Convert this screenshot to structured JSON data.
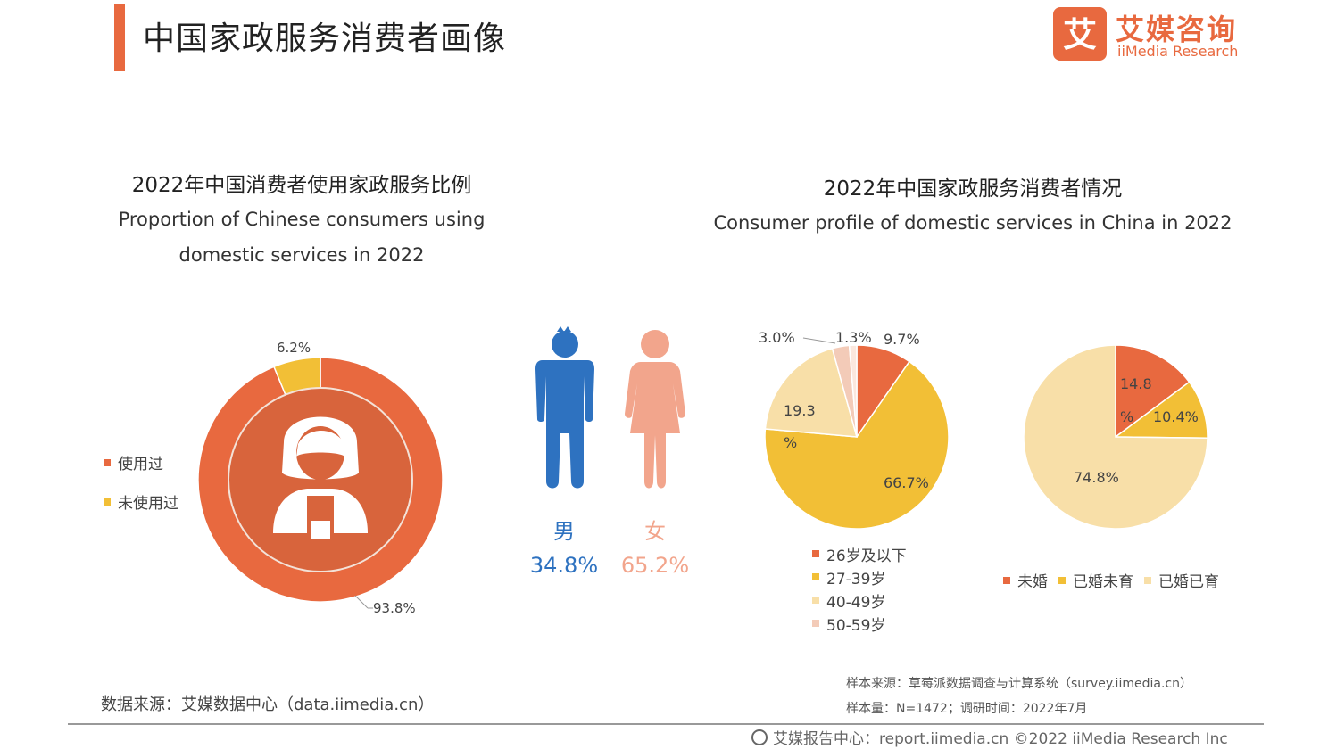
{
  "header": {
    "title": "中国家政服务消费者画像",
    "logo_cn": "艾媒咨询",
    "logo_en": "iiMedia Research",
    "logo_mark": "艾"
  },
  "colors": {
    "orange": "#e8693f",
    "yellow": "#f2bf36",
    "light_yellow": "#f8dfa8",
    "pink": "#f3cbb8",
    "blue": "#2e72c0",
    "salmon": "#f2a58c"
  },
  "left_section": {
    "title": "2022年中国消费者使用家政服务比例",
    "subtitle_line1": "Proportion of Chinese consumers using",
    "subtitle_line2": "domestic services in 2022",
    "center_icon": "person-icon"
  },
  "right_section": {
    "title": "2022年中国家政服务消费者情况",
    "subtitle": "Consumer profile of domestic services in China in 2022"
  },
  "gender": {
    "male_char": "男",
    "female_char": "女",
    "male_value": "34.8%",
    "female_value": "65.2%",
    "male_icon": "male-figure-icon",
    "female_icon": "female-figure-icon"
  },
  "chart_data": [
    {
      "type": "pie",
      "style": "donut",
      "categories": [
        "使用过",
        "未使用过"
      ],
      "values": [
        93.8,
        6.2
      ],
      "labels": [
        "93.8%",
        "6.2%"
      ],
      "colors": [
        "#e8693f",
        "#f2bf36"
      ],
      "legend": "left"
    },
    {
      "type": "pie",
      "categories": [
        "26岁及以下",
        "27-39岁",
        "40-49岁",
        "50-59岁",
        ""
      ],
      "values": [
        9.7,
        66.7,
        19.3,
        3.0,
        1.3
      ],
      "labels": [
        "9.7%",
        "66.7%",
        "19.3 %",
        "3.0%",
        "1.3%"
      ],
      "colors": [
        "#e8693f",
        "#f2bf36",
        "#f8dfa8",
        "#f3cbb8",
        "#fbe7dd"
      ],
      "legend": "bottom"
    },
    {
      "type": "pie",
      "categories": [
        "未婚",
        "已婚未育",
        "已婚已育"
      ],
      "values": [
        14.8,
        10.4,
        74.8
      ],
      "labels": [
        "14.8 %",
        "10.4%",
        "74.8%"
      ],
      "colors": [
        "#e8693f",
        "#f2bf36",
        "#f8dfa8"
      ],
      "legend": "bottom"
    }
  ],
  "footer": {
    "source": "数据来源：艾媒数据中心（data.iimedia.cn）",
    "sample_source": "样本来源：草莓派数据调查与计算系统（survey.iimedia.cn）",
    "sample_size": "样本量：N=1472；调研时间：2022年7月",
    "copyright": "艾媒报告中心：report.iimedia.cn   ©2022  iiMedia Research  Inc"
  }
}
